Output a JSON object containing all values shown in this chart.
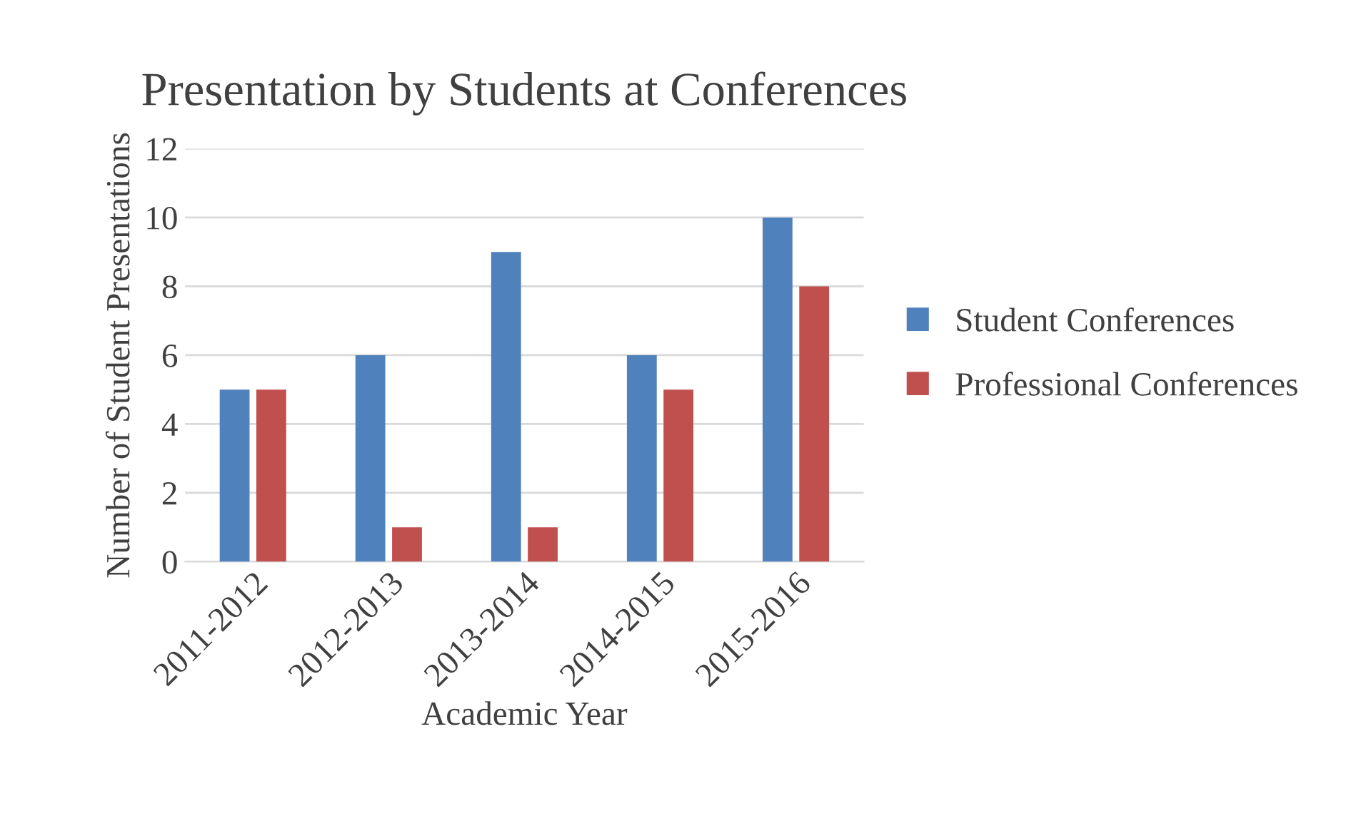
{
  "chart_data": {
    "type": "bar",
    "title": "Presentation by Students at Conferences",
    "xlabel": "Academic Year",
    "ylabel": "Number of Student Presentations",
    "categories": [
      "2011-2012",
      "2012-2013",
      "2013-2014",
      "2014-2015",
      "2015-2016"
    ],
    "series": [
      {
        "name": "Student Conferences",
        "color": "#4f81bd",
        "values": [
          5,
          6,
          9,
          6,
          10
        ]
      },
      {
        "name": "Professional Conferences",
        "color": "#c0504d",
        "values": [
          5,
          1,
          1,
          5,
          8
        ]
      }
    ],
    "ylim": [
      0,
      12
    ],
    "yticks": [
      0,
      2,
      4,
      6,
      8,
      10,
      12
    ],
    "grid": "y",
    "legend": "right"
  }
}
